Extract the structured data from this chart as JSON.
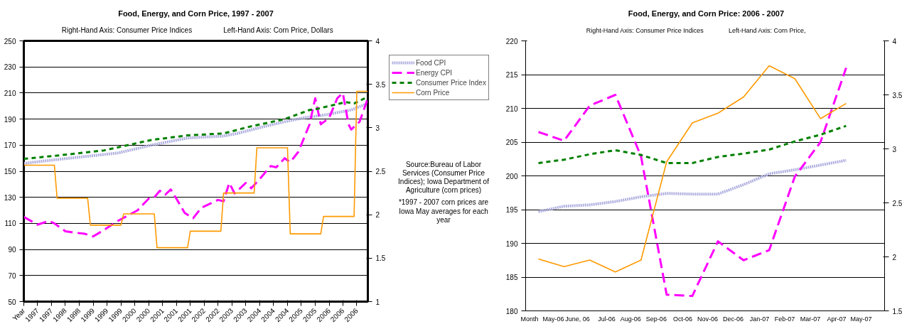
{
  "chart_data": [
    {
      "type": "line",
      "title": "Food, Energy, and Corn Price, 1997 - 2007",
      "subtitle": "Right-Hand Axis: Consumer Price Indices",
      "annotations": [
        "Left-Hand Axis: Corn Price, Dollars",
        "Source:Bureau of Labor Services (Consumer Price Indices); Iowa Department of Agriculture (corn prices)",
        "*1997 - 2007 corn prices are Iowa May averages for each year"
      ],
      "xlim": [
        "1996-12",
        "2007-04"
      ],
      "xticks": [
        {
          "value": "1996-12",
          "label": "Year"
        },
        {
          "value": "1997-05",
          "label": "1997"
        },
        {
          "value": "1997-10",
          "label": "1997"
        },
        {
          "value": "1998-03",
          "label": "1998"
        },
        {
          "value": "1998-08",
          "label": "1998"
        },
        {
          "value": "1999-01",
          "label": "1999"
        },
        {
          "value": "1999-06",
          "label": "1999"
        },
        {
          "value": "1999-11",
          "label": "1999"
        },
        {
          "value": "2000-04",
          "label": "2000"
        },
        {
          "value": "2000-09",
          "label": "2000"
        },
        {
          "value": "2001-02",
          "label": "2001"
        },
        {
          "value": "2001-07",
          "label": "2001"
        },
        {
          "value": "2001-12",
          "label": "2001"
        },
        {
          "value": "2002-05",
          "label": "2002"
        },
        {
          "value": "2002-10",
          "label": "2002"
        },
        {
          "value": "2003-03",
          "label": "2003"
        },
        {
          "value": "2003-08",
          "label": "2003"
        },
        {
          "value": "2004-01",
          "label": "2004"
        },
        {
          "value": "2004-06",
          "label": "2004"
        },
        {
          "value": "2004-11",
          "label": "2004"
        },
        {
          "value": "2005-04",
          "label": "2005"
        },
        {
          "value": "2005-09",
          "label": "2005"
        },
        {
          "value": "2006-02",
          "label": "2006"
        },
        {
          "value": "2006-07",
          "label": "2006"
        },
        {
          "value": "2006-12",
          "label": "2006"
        }
      ],
      "ylim": [
        50,
        250
      ],
      "yticks": [
        50,
        70,
        90,
        110,
        130,
        150,
        170,
        190,
        210,
        230,
        250
      ],
      "y2lim": [
        1,
        4
      ],
      "y2ticks": [
        1,
        1.5,
        2,
        2.5,
        3,
        3.5,
        4
      ],
      "grid": "y",
      "legend": "right",
      "series": [
        {
          "name": "Food CPI",
          "color": "#b0b0e0",
          "line_style": "dotted",
          "x": [
            "1996-12",
            "1997-12",
            "1999-10",
            "2000-10",
            "2001-11",
            "2002-12",
            "2003-05",
            "2004-02",
            "2004-10",
            "2005-05",
            "2005-12",
            "2006-10",
            "2007-04"
          ],
          "values": [
            156,
            159,
            164,
            170,
            175.5,
            177,
            179,
            184,
            188,
            191,
            193,
            197,
            202
          ]
        },
        {
          "name": "Energy CPI",
          "color": "#ff00ff",
          "line_style": "dashed",
          "x": [
            "1996-12",
            "1997-05",
            "1997-09",
            "1997-11",
            "1998-03",
            "1998-06",
            "1998-10",
            "1999-01",
            "1999-05",
            "1999-10",
            "2000-05",
            "2000-09",
            "2000-11",
            "2001-01",
            "2001-03",
            "2001-05",
            "2001-07",
            "2001-10",
            "2002-01",
            "2002-04",
            "2002-10",
            "2002-12",
            "2003-02",
            "2003-04",
            "2003-08",
            "2003-10",
            "2004-01",
            "2004-05",
            "2004-07",
            "2004-10",
            "2004-12",
            "2005-03",
            "2005-07",
            "2005-09",
            "2005-11",
            "2006-02",
            "2006-05",
            "2006-07",
            "2006-09",
            "2006-10",
            "2007-01",
            "2007-04"
          ],
          "values": [
            115,
            109,
            112,
            110,
            104,
            103,
            102,
            100,
            105,
            112,
            120,
            129,
            130,
            135,
            132,
            136,
            129,
            118,
            114,
            122,
            128,
            127,
            141,
            133,
            141,
            137,
            144,
            154,
            153,
            160,
            157,
            165,
            186,
            206,
            186,
            191,
            206,
            210,
            186,
            182,
            188,
            206
          ]
        },
        {
          "name": "Consumer Price Index",
          "color": "#008000",
          "line_style": "dashed",
          "x": [
            "1996-12",
            "1997-12",
            "1999-05",
            "2000-10",
            "2001-11",
            "2002-12",
            "2003-09",
            "2004-10",
            "2005-07",
            "2005-10",
            "2006-08",
            "2006-11",
            "2007-04"
          ],
          "values": [
            159.5,
            162,
            166,
            174,
            177.5,
            179,
            184,
            190,
            197,
            198,
            203,
            202,
            207
          ]
        },
        {
          "name": "Corn Price",
          "color": "#ff9900",
          "line_style": "solid",
          "axis": "y2",
          "x": [
            "1996-12",
            "1997-11",
            "1997-12",
            "1998-11",
            "1998-12",
            "1999-11",
            "1999-12",
            "2000-11",
            "2000-12",
            "2001-11",
            "2001-12",
            "2002-11",
            "2002-12",
            "2003-11",
            "2003-12",
            "2004-11",
            "2004-12",
            "2005-11",
            "2005-12",
            "2006-11",
            "2006-12",
            "2007-04"
          ],
          "values": [
            2.57,
            2.57,
            2.19,
            2.19,
            1.88,
            1.88,
            2.01,
            2.01,
            1.62,
            1.62,
            1.81,
            1.81,
            2.25,
            2.25,
            2.77,
            2.77,
            1.78,
            1.78,
            1.98,
            1.98,
            3.42,
            3.42
          ]
        }
      ]
    },
    {
      "type": "line",
      "title": "Food, Energy, and Corn Price: 2006 - 2007",
      "subtitle": "Right-Hand Axis: Consumer Price Indices",
      "annotations": [
        "Left-Hand Axis: Corn Price,"
      ],
      "categories": [
        "Month",
        "May-06",
        "June, 06",
        "Jul-06",
        "Aug-06",
        "Sep-06",
        "Oct-06",
        "Nov-06",
        "Dec-06",
        "Jan-07",
        "Feb-07",
        "Mar-07",
        "Apr-07",
        "May-07"
      ],
      "ylim": [
        180,
        220
      ],
      "yticks": [
        180,
        185,
        190,
        195,
        200,
        205,
        210,
        215,
        220
      ],
      "y2lim": [
        1.5,
        4
      ],
      "y2ticks": [
        1.5,
        2,
        2.5,
        3,
        3.5,
        4
      ],
      "grid": "y",
      "series": [
        {
          "color": "#b0b0e0",
          "line_style": "dotted",
          "values": [
            194.7,
            195.5,
            195.7,
            196.2,
            196.9,
            197.4,
            197.3,
            197.3,
            198.7,
            200.3,
            200.9,
            201.6,
            202.3,
            null
          ]
        },
        {
          "color": "#ff00ff",
          "line_style": "dashed",
          "values": [
            206.5,
            205.2,
            210.4,
            212.0,
            202.9,
            182.4,
            182.2,
            190.3,
            187.5,
            189.0,
            199.9,
            205.0,
            216.0,
            null
          ]
        },
        {
          "color": "#008000",
          "line_style": "dashed",
          "values": [
            201.9,
            202.4,
            203.2,
            203.8,
            203.1,
            201.9,
            201.9,
            202.8,
            203.3,
            203.9,
            205.1,
            206.1,
            207.4,
            null
          ]
        },
        {
          "color": "#ff9900",
          "line_style": "solid",
          "axis": "y2",
          "values": [
            1.98,
            1.91,
            1.97,
            1.86,
            1.97,
            2.88,
            3.24,
            3.33,
            3.48,
            3.77,
            3.65,
            3.28,
            3.42,
            null
          ]
        }
      ]
    }
  ]
}
